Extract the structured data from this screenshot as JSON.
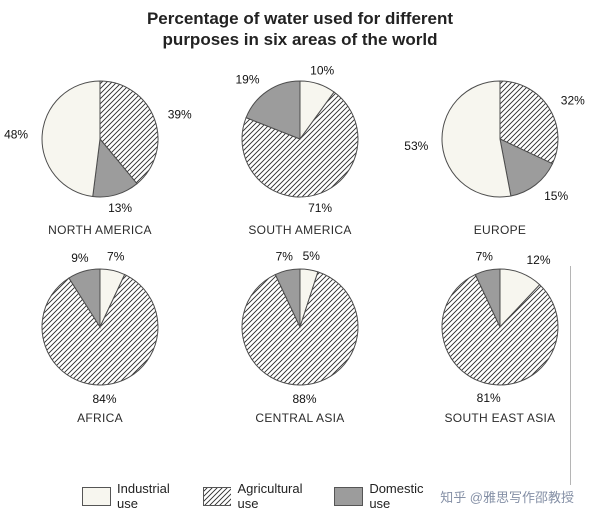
{
  "title": "Percentage of water used for different purposes in six areas of the world",
  "legend": [
    {
      "key": "industrial",
      "label": "Industrial use"
    },
    {
      "key": "agricultural",
      "label": "Agricultural use"
    },
    {
      "key": "domestic",
      "label": "Domestic use"
    }
  ],
  "colors": {
    "industrial": "#f7f6ef",
    "domestic": "#9c9c9c",
    "hatch_line": "#2b2b2b",
    "slice_stroke": "#4d4d4d",
    "watermark": "#8590a6"
  },
  "watermark": "知乎 @雅思写作邵教授",
  "chart_data": {
    "type": "pie",
    "title": "Percentage of water used for different purposes in six areas of the world",
    "unit": "%",
    "legend_position": "bottom",
    "categories": [
      "Industrial use",
      "Agricultural use",
      "Domestic use"
    ],
    "charts": [
      {
        "region": "NORTH AMERICA",
        "slices": [
          {
            "category": "Agricultural use",
            "key": "agricultural",
            "value": 39
          },
          {
            "category": "Domestic use",
            "key": "domestic",
            "value": 13
          },
          {
            "category": "Industrial use",
            "key": "industrial",
            "value": 48
          }
        ]
      },
      {
        "region": "SOUTH AMERICA",
        "slices": [
          {
            "category": "Industrial use",
            "key": "industrial",
            "value": 10
          },
          {
            "category": "Agricultural use",
            "key": "agricultural",
            "value": 71
          },
          {
            "category": "Domestic use",
            "key": "domestic",
            "value": 19
          }
        ]
      },
      {
        "region": "EUROPE",
        "slices": [
          {
            "category": "Agricultural use",
            "key": "agricultural",
            "value": 32
          },
          {
            "category": "Domestic use",
            "key": "domestic",
            "value": 15
          },
          {
            "category": "Industrial use",
            "key": "industrial",
            "value": 53
          }
        ]
      },
      {
        "region": "AFRICA",
        "slices": [
          {
            "category": "Industrial use",
            "key": "industrial",
            "value": 7
          },
          {
            "category": "Agricultural use",
            "key": "agricultural",
            "value": 84
          },
          {
            "category": "Domestic use",
            "key": "domestic",
            "value": 9
          }
        ]
      },
      {
        "region": "CENTRAL ASIA",
        "slices": [
          {
            "category": "Industrial use",
            "key": "industrial",
            "value": 5
          },
          {
            "category": "Agricultural use",
            "key": "agricultural",
            "value": 88
          },
          {
            "category": "Domestic use",
            "key": "domestic",
            "value": 7
          }
        ]
      },
      {
        "region": "SOUTH EAST ASIA",
        "slices": [
          {
            "category": "Industrial use",
            "key": "industrial",
            "value": 12
          },
          {
            "category": "Agricultural use",
            "key": "agricultural",
            "value": 81
          },
          {
            "category": "Domestic use",
            "key": "domestic",
            "value": 7
          }
        ]
      }
    ]
  }
}
